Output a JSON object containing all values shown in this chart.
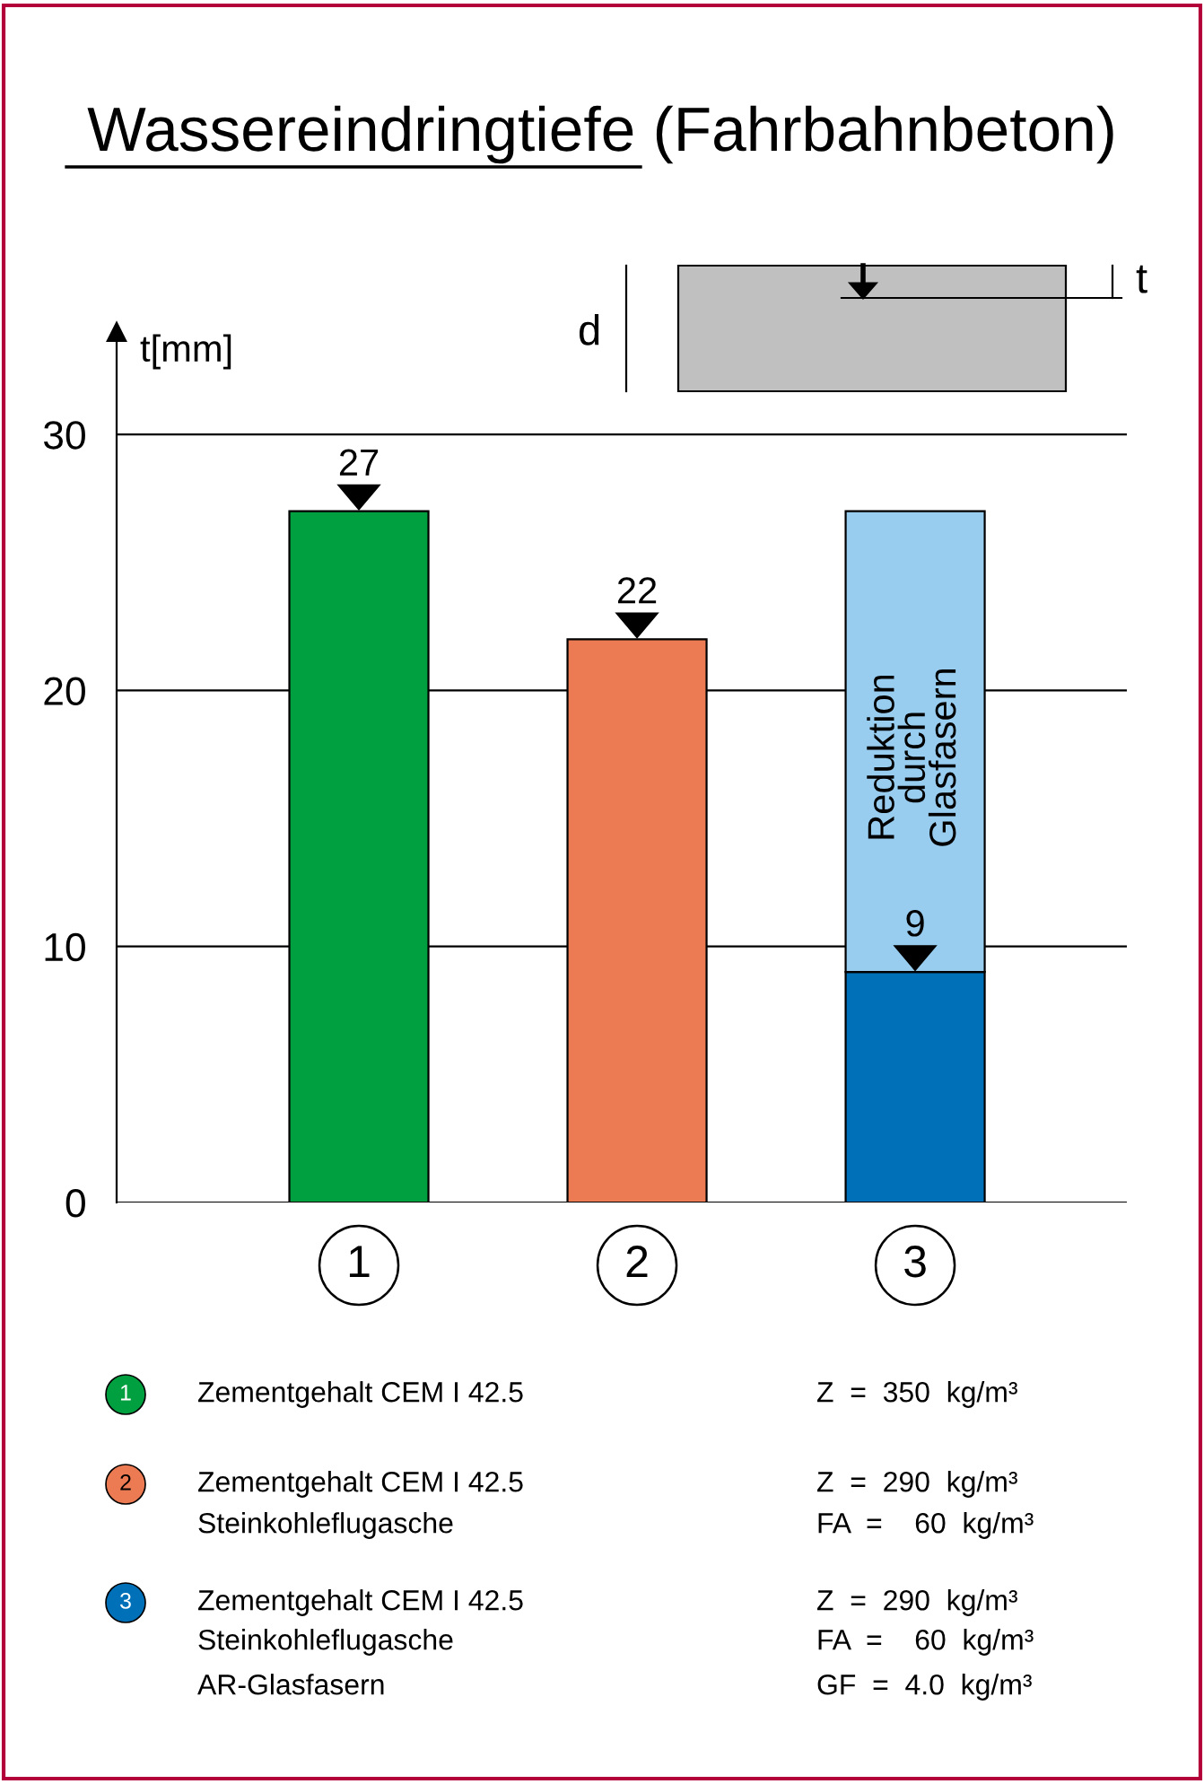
{
  "chart_data": {
    "type": "bar",
    "title": "Wassereindringtiefe (Fahrbahnbeton)",
    "ylabel": "t[mm]",
    "categories": [
      "1",
      "2",
      "3"
    ],
    "stacked": true,
    "series": [
      {
        "colors": [
          "#00a040",
          "#ec7b53",
          "#0071b9"
        ],
        "values": [
          27,
          22,
          9
        ],
        "value_labels": [
          "27",
          "22",
          "9"
        ]
      },
      {
        "color": "#99cdef",
        "values": [
          null,
          null,
          18
        ]
      }
    ],
    "ylim": [
      0,
      34
    ],
    "yticks": [
      0,
      10,
      20,
      30
    ],
    "grid": "y",
    "legend": false,
    "annotations": [
      "d",
      "t",
      "Reduktion\ndurch\nGlasfasern",
      "Zementgehalt CEM I 42.5",
      "Z  =  350  kg/m³",
      "Zementgehalt CEM I 42.5",
      "Z  =  290  kg/m³",
      "Steinkohleflugasche",
      "FA  =    60  kg/m³",
      "Zementgehalt CEM I 42.5",
      "Z  =  290  kg/m³",
      "Steinkohleflugasche",
      "FA  =    60  kg/m³",
      "AR-Glasfasern",
      "GF  =  4.0  kg/m³"
    ]
  }
}
